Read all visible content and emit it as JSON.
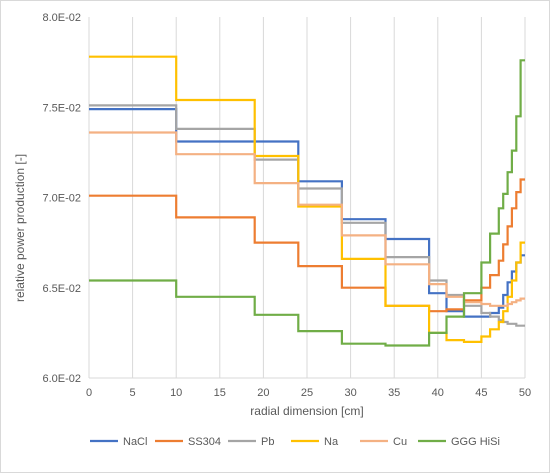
{
  "chart_data": {
    "type": "line",
    "step": true,
    "xlabel": "radial dimension [cm]",
    "ylabel": "relative power production [-]",
    "xlim": [
      0,
      50
    ],
    "ylim": [
      0.06,
      0.08
    ],
    "x_ticks": [
      0,
      5,
      10,
      15,
      20,
      25,
      30,
      35,
      40,
      45,
      50
    ],
    "x_tick_labels": [
      "0",
      "5",
      "10",
      "15",
      "20",
      "25",
      "30",
      "35",
      "40",
      "45",
      "50"
    ],
    "y_ticks": [
      0.06,
      0.065,
      0.07,
      0.075,
      0.08
    ],
    "y_tick_labels": [
      "6.0E-02",
      "6.5E-02",
      "7.0E-02",
      "7.5E-02",
      "8.0E-02"
    ],
    "grid": "vertical",
    "legend_position": "bottom",
    "x": [
      0,
      10,
      19,
      24,
      29,
      34,
      39,
      41,
      43,
      45,
      46,
      47,
      47.5,
      48,
      48.5,
      49,
      49.5
    ],
    "series": [
      {
        "name": "NaCl",
        "color": "#4472c4",
        "values": [
          0.0749,
          0.0731,
          0.0731,
          0.0709,
          0.0688,
          0.0677,
          0.0647,
          0.0637,
          0.0634,
          0.0634,
          0.0636,
          0.0639,
          0.0646,
          0.0653,
          0.0659,
          0.0664,
          0.0668
        ]
      },
      {
        "name": "SS304",
        "color": "#ed7d31",
        "values": [
          0.0701,
          0.0689,
          0.0675,
          0.0662,
          0.065,
          0.064,
          0.0637,
          0.0638,
          0.0643,
          0.065,
          0.0657,
          0.0665,
          0.0674,
          0.0684,
          0.0694,
          0.0703,
          0.071
        ]
      },
      {
        "name": "Pb",
        "color": "#a5a5a5",
        "values": [
          0.0751,
          0.0738,
          0.0721,
          0.0705,
          0.0686,
          0.0667,
          0.0654,
          0.0646,
          0.064,
          0.0636,
          0.0634,
          0.0632,
          0.0631,
          0.063,
          0.063,
          0.0629,
          0.0629
        ]
      },
      {
        "name": "Na",
        "color": "#ffc000",
        "values": [
          0.0778,
          0.0754,
          0.0723,
          0.0695,
          0.0666,
          0.064,
          0.0625,
          0.0621,
          0.062,
          0.0623,
          0.0627,
          0.0631,
          0.0637,
          0.0645,
          0.0654,
          0.0664,
          0.0675
        ]
      },
      {
        "name": "Cu",
        "color": "#f4b183",
        "values": [
          0.0736,
          0.0724,
          0.0708,
          0.0696,
          0.0679,
          0.0663,
          0.0652,
          0.0645,
          0.0642,
          0.0641,
          0.064,
          0.064,
          0.064,
          0.0641,
          0.0642,
          0.0643,
          0.0644
        ]
      },
      {
        "name": "GGG HiSi",
        "color": "#70ad47",
        "values": [
          0.0654,
          0.0645,
          0.0635,
          0.0626,
          0.0619,
          0.0618,
          0.0625,
          0.0634,
          0.0647,
          0.0664,
          0.068,
          0.0694,
          0.0702,
          0.0714,
          0.0726,
          0.0745,
          0.0776
        ]
      }
    ]
  }
}
